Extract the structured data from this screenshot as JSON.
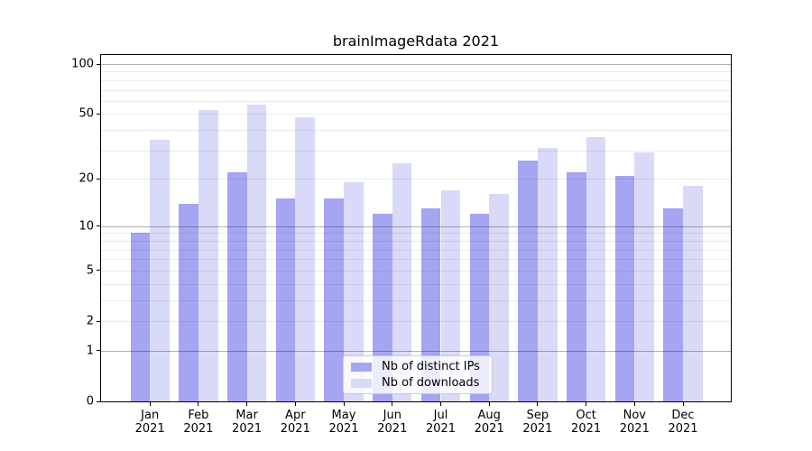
{
  "title": "brainImageRdata 2021",
  "chart_data": {
    "type": "bar",
    "title": "brainImageRdata 2021",
    "categories": [
      "Jan",
      "Feb",
      "Mar",
      "Apr",
      "May",
      "Jun",
      "Jul",
      "Aug",
      "Sep",
      "Oct",
      "Nov",
      "Dec"
    ],
    "x_year": "2021",
    "series": [
      {
        "name": "Nb of distinct IPs",
        "color": "#a5a5f2",
        "values": [
          9,
          14,
          22,
          15,
          15,
          12,
          13,
          12,
          26,
          22,
          21,
          13
        ]
      },
      {
        "name": "Nb of downloads",
        "color": "#d9d9f8",
        "values": [
          35,
          53,
          57,
          48,
          19,
          25,
          17,
          16,
          31,
          36,
          29,
          18
        ]
      }
    ],
    "yticks": [
      0,
      1,
      2,
      5,
      10,
      20,
      50,
      100
    ],
    "yscale": "log1p",
    "ylim": [
      0,
      113
    ],
    "xlabel": "",
    "ylabel": "",
    "grid": "horizontal major+minor",
    "legend_position": "lower center",
    "colors": {
      "major_grid": "#b2b2b2",
      "minor_grid": "#ececec",
      "axis": "#000000",
      "background": "#ffffff"
    }
  }
}
